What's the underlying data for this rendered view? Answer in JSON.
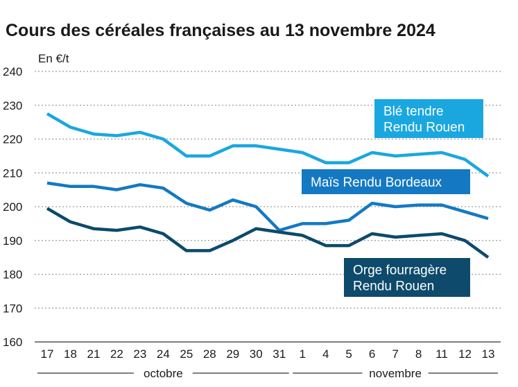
{
  "chart_data": {
    "type": "line",
    "title": "Cours des céréales françaises au 13 novembre 2024",
    "ylabel": "En €/t",
    "xlabel": "",
    "ylim": [
      160,
      240
    ],
    "yticks": [
      160,
      170,
      180,
      190,
      200,
      210,
      220,
      230,
      240
    ],
    "grid": true,
    "categories": [
      "17",
      "18",
      "21",
      "22",
      "23",
      "24",
      "25",
      "28",
      "29",
      "30",
      "31",
      "1",
      "4",
      "5",
      "6",
      "7",
      "8",
      "11",
      "12",
      "13"
    ],
    "month_groups": [
      {
        "label": "octobre",
        "from": 0,
        "to": 10
      },
      {
        "label": "novembre",
        "from": 11,
        "to": 19
      }
    ],
    "series": [
      {
        "name": "Blé tendre Rendu Rouen",
        "label_lines": [
          "Blé tendre",
          "Rendu Rouen"
        ],
        "color": "#1aa7e0",
        "values": [
          227.5,
          223.5,
          221.5,
          221,
          222,
          220,
          215,
          215,
          218,
          218,
          217,
          216,
          213,
          213,
          216,
          215,
          215.5,
          216,
          214,
          209
        ]
      },
      {
        "name": "Maïs Rendu Bordeaux",
        "label_lines": [
          "Maïs Rendu Bordeaux"
        ],
        "color": "#1479c2",
        "values": [
          207,
          206,
          206,
          205,
          206.5,
          205.5,
          201,
          199,
          202,
          200,
          193,
          195,
          195,
          196,
          201,
          200,
          200.5,
          200.5,
          198.5,
          196.5
        ]
      },
      {
        "name": "Orge fourragère Rendu Rouen",
        "label_lines": [
          "Orge fourragère",
          "Rendu Rouen"
        ],
        "color": "#0d4a6b",
        "values": [
          199.5,
          195.5,
          193.5,
          193,
          194,
          192,
          187,
          187,
          190,
          193.5,
          192.5,
          191.5,
          188.5,
          188.5,
          192,
          191,
          191.5,
          192,
          190,
          185
        ]
      }
    ]
  }
}
